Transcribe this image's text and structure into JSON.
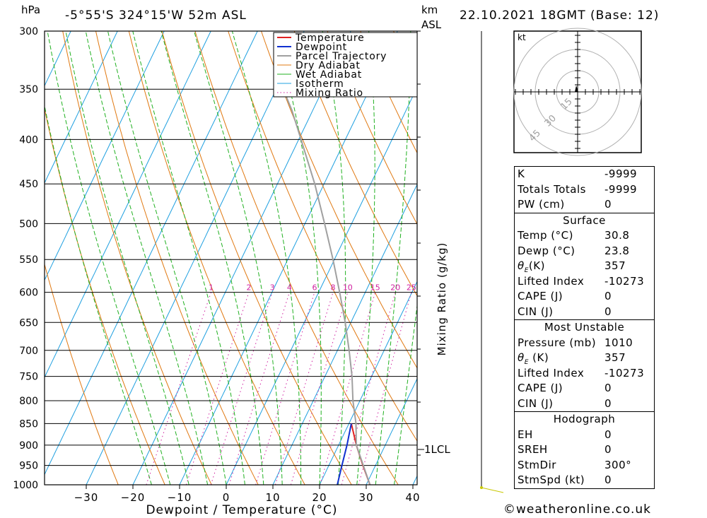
{
  "header": {
    "location": "-5°55'S  324°15'W  52m  ASL",
    "datetime": "22.10.2021  18GMT  (Base: 12)",
    "unit_left": "hPa",
    "unit_km": "km",
    "unit_asl": "ASL"
  },
  "chart_data": {
    "type": "line",
    "xlabel": "Dewpoint / Temperature (°C)",
    "ylabel": "hPa",
    "right_label": "Mixing Ratio (g/kg)",
    "xlim": [
      -40,
      40
    ],
    "ylim": [
      1000,
      300
    ],
    "x_ticks": [
      -30,
      -20,
      -10,
      0,
      10,
      20,
      30,
      40
    ],
    "pressure_levels": [
      300,
      350,
      400,
      450,
      500,
      550,
      600,
      650,
      700,
      750,
      800,
      850,
      900,
      950,
      1000
    ],
    "mixing_ratio_labels": [
      "1",
      "2",
      "3",
      "4",
      "6",
      "8",
      "10",
      "15",
      "20",
      "25"
    ],
    "legend": [
      "Temperature",
      "Dewpoint",
      "Parcel Trajectory",
      "Dry Adiabat",
      "Wet Adiabat",
      "Isotherm",
      "Mixing Ratio"
    ],
    "colors": {
      "temperature": "#e02020",
      "dewpoint": "#1030d0",
      "parcel": "#a0a0a0",
      "dry_adiabat": "#e07810",
      "wet_adiabat": "#20b020",
      "isotherm": "#20a0e0",
      "mixing_ratio": "#d020a0"
    },
    "series": [
      {
        "name": "Temperature",
        "points": [
          [
            1000,
            30.8
          ],
          [
            950,
            27.3
          ],
          [
            900,
            23.8
          ],
          [
            850,
            20.5
          ]
        ]
      },
      {
        "name": "Dewpoint",
        "points": [
          [
            1000,
            23.8
          ],
          [
            950,
            22.8
          ],
          [
            900,
            21.8
          ],
          [
            850,
            20.5
          ]
        ]
      },
      {
        "name": "Parcel Trajectory",
        "points": [
          [
            1000,
            30.8
          ],
          [
            900,
            23.8
          ],
          [
            850,
            21.5
          ],
          [
            800,
            18.5
          ],
          [
            750,
            15.8
          ],
          [
            700,
            12.5
          ],
          [
            650,
            8.8
          ],
          [
            600,
            4.5
          ],
          [
            550,
            -0.3
          ],
          [
            500,
            -5.8
          ],
          [
            450,
            -12.0
          ],
          [
            400,
            -19.5
          ],
          [
            370,
            -24.5
          ],
          [
            350,
            -28.5
          ]
        ]
      }
    ],
    "lcl_label": "1LCL",
    "lcl_pressure": 905
  },
  "hodograph": {
    "unit": "kt",
    "rings": [
      "15",
      "30",
      "45"
    ]
  },
  "indices": {
    "k_label": "K",
    "k_value": "-9999",
    "tt_label": "Totals Totals",
    "tt_value": "-9999",
    "pw_label": "PW (cm)",
    "pw_value": "0"
  },
  "surface": {
    "title": "Surface",
    "temp_label": "Temp (°C)",
    "temp_value": "30.8",
    "dewp_label": "Dewp (°C)",
    "dewp_value": "23.8",
    "theta_label": "(K)",
    "theta_value": "357",
    "li_label": "Lifted Index",
    "li_value": "-10273",
    "cape_label": "CAPE (J)",
    "cape_value": "0",
    "cin_label": "CIN (J)",
    "cin_value": "0"
  },
  "most_unstable": {
    "title": "Most Unstable",
    "pressure_label": "Pressure (mb)",
    "pressure_value": "1010",
    "theta_label": " (K)",
    "theta_value": "357",
    "li_label": "Lifted Index",
    "li_value": "-10273",
    "cape_label": "CAPE (J)",
    "cape_value": "0",
    "cin_label": "CIN (J)",
    "cin_value": "0"
  },
  "hodograph_table": {
    "title": "Hodograph",
    "eh_label": "EH",
    "eh_value": "0",
    "sreh_label": "SREH",
    "sreh_value": "0",
    "stmdir_label": "StmDir",
    "stmdir_value": "300°",
    "stmspd_label": "StmSpd (kt)",
    "stmspd_value": "0"
  },
  "footer": {
    "copyright": "©weatheronline.co.uk"
  }
}
